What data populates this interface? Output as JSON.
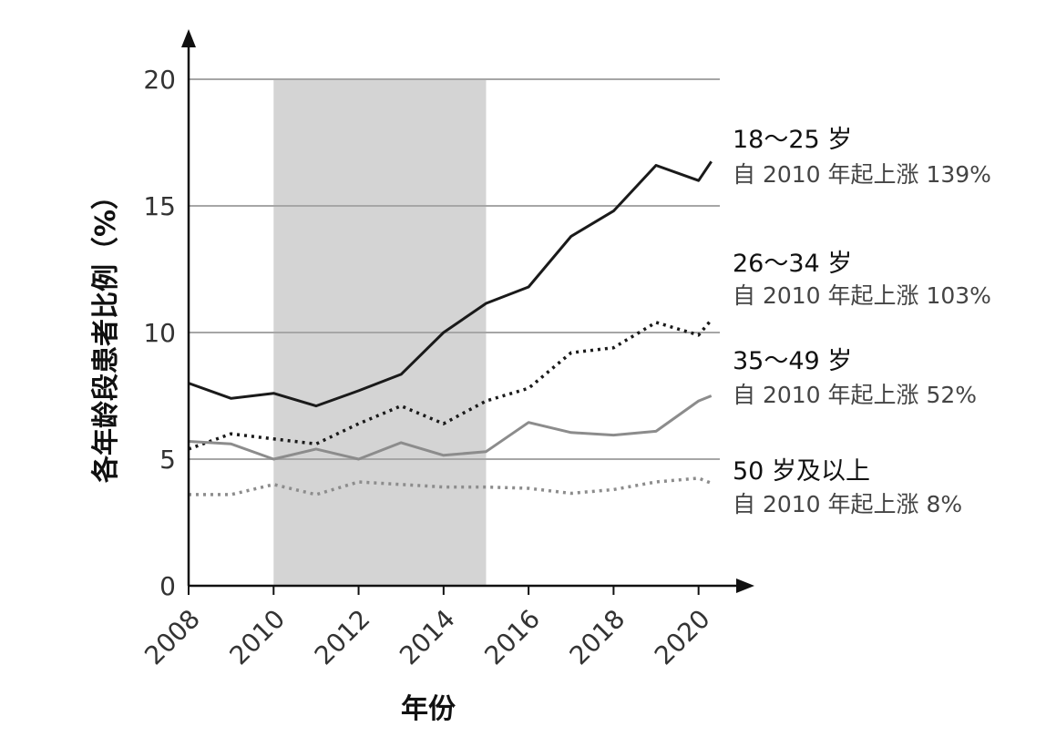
{
  "chart_data": {
    "type": "line",
    "xlabel": "年份",
    "ylabel": "各年龄段患者比例（%）",
    "xlim": [
      2008,
      2020.5
    ],
    "ylim": [
      0,
      20
    ],
    "x_ticks": [
      "2008",
      "2010",
      "2012",
      "2014",
      "2016",
      "2018",
      "2020"
    ],
    "y_ticks": [
      "0",
      "5",
      "10",
      "15",
      "20"
    ],
    "gridlines_y": [
      5,
      10,
      15,
      20
    ],
    "grid": "horizontal",
    "shaded_region": {
      "x_start": 2010,
      "x_end": 2015
    },
    "x": [
      2008,
      2009,
      2010,
      2011,
      2012,
      2013,
      2014,
      2015,
      2016,
      2017,
      2018,
      2019,
      2020,
      2020.3
    ],
    "series": [
      {
        "name": "18～25 岁",
        "note": "自 2010 年起上涨 139%",
        "style": "solid",
        "color": "#1a1a1a",
        "values": [
          8.0,
          7.4,
          7.6,
          7.1,
          7.7,
          8.35,
          10.0,
          11.15,
          11.8,
          13.8,
          14.8,
          16.6,
          16.0,
          16.75
        ]
      },
      {
        "name": "26～34 岁",
        "note": "自 2010 年起上涨 103%",
        "style": "dotted",
        "color": "#1a1a1a",
        "values": [
          5.4,
          6.0,
          5.8,
          5.6,
          6.4,
          7.1,
          6.4,
          7.3,
          7.8,
          9.2,
          9.4,
          10.4,
          9.9,
          10.5
        ]
      },
      {
        "name": "35～49 岁",
        "note": "自 2010 年起上涨 52%",
        "style": "solid",
        "color": "#8c8c8c",
        "values": [
          5.7,
          5.6,
          5.0,
          5.4,
          5.0,
          5.65,
          5.15,
          5.3,
          6.45,
          6.05,
          5.95,
          6.1,
          7.3,
          7.5
        ]
      },
      {
        "name": "50 岁及以上",
        "note": "自 2010 年起上涨 8%",
        "style": "dotted",
        "color": "#8c8c8c",
        "values": [
          3.6,
          3.6,
          4.0,
          3.6,
          4.1,
          4.0,
          3.9,
          3.9,
          3.85,
          3.65,
          3.8,
          4.1,
          4.25,
          4.05
        ]
      }
    ]
  }
}
